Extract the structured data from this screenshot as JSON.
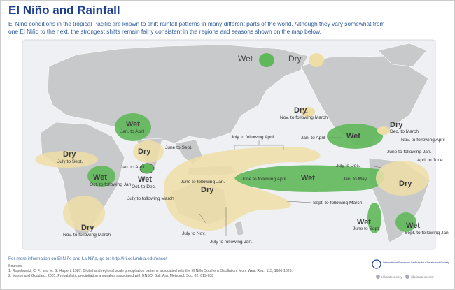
{
  "header": {
    "title": "El Niño and Rainfall",
    "subtitle": [
      "El Niño conditions in the tropical Pacific are known to shift rainfall patterns in many different parts of the world. Although they vary somewhat from",
      "one El Niño to the next, the strongest shifts remain fairly consistent in the regions and seasons shown on the map below."
    ]
  },
  "legend": {
    "wet": "Wet",
    "dry": "Dry"
  },
  "regions": [
    {
      "label": "Wet",
      "season": "Jan. to April"
    },
    {
      "label": "Dry",
      "season": "June to Sept."
    },
    {
      "label": "Dry",
      "season": "July to Sept."
    },
    {
      "season": "Jan. to April"
    },
    {
      "label": "Wet",
      "season": "Oct. to Dec."
    },
    {
      "label": "Wet",
      "season": "Oct. to following Jan."
    },
    {
      "label": "Dry",
      "season": "Nov. to following March"
    },
    {
      "label": "Dry",
      "seasons": [
        "June to following Jan.",
        "July to following March",
        "July to Nov.",
        "July to following Jan.",
        "Sept. to following March",
        "July to following April"
      ]
    },
    {
      "label": "Wet",
      "seasons": [
        "June to following April",
        "Jan. to May"
      ]
    },
    {
      "label": "Dry",
      "season": "Nov. to following March"
    },
    {
      "label": "Wet",
      "season": "Jan. to April"
    },
    {
      "label": "Dry",
      "season": "Dec. to March"
    },
    {
      "season": "Nov. to following April"
    },
    {
      "season": "June to following Jan."
    },
    {
      "season": "July to Dec."
    },
    {
      "season": "April to June"
    },
    {
      "label": "Dry"
    },
    {
      "label": "Wet",
      "season": "June to Sept."
    },
    {
      "label": "Wet",
      "season": "Sept. to following Jan."
    }
  ],
  "footer": {
    "info": "For more information on El Niño and La Niña, go to: http://iri.columbia.edu/enso/",
    "sources_title": "Sources:",
    "sources": [
      "1. Ropelewski, C. F., and M. S. Halpert, 1987: Global and regional scale precipitation patterns associated with the El Niño Southern Oscillation. Mon. Wea. Rev., 115, 1606-1626.",
      "2. Mason and Goddard, 2001. Probabilistic precipitation anomalies associated with ENSO. Bull. Am. Meteorol. Soc. 82, 619-638"
    ],
    "logo": "International Research Institute for Climate and Society",
    "social": [
      "/climatesociety",
      "@climatesociety"
    ]
  }
}
